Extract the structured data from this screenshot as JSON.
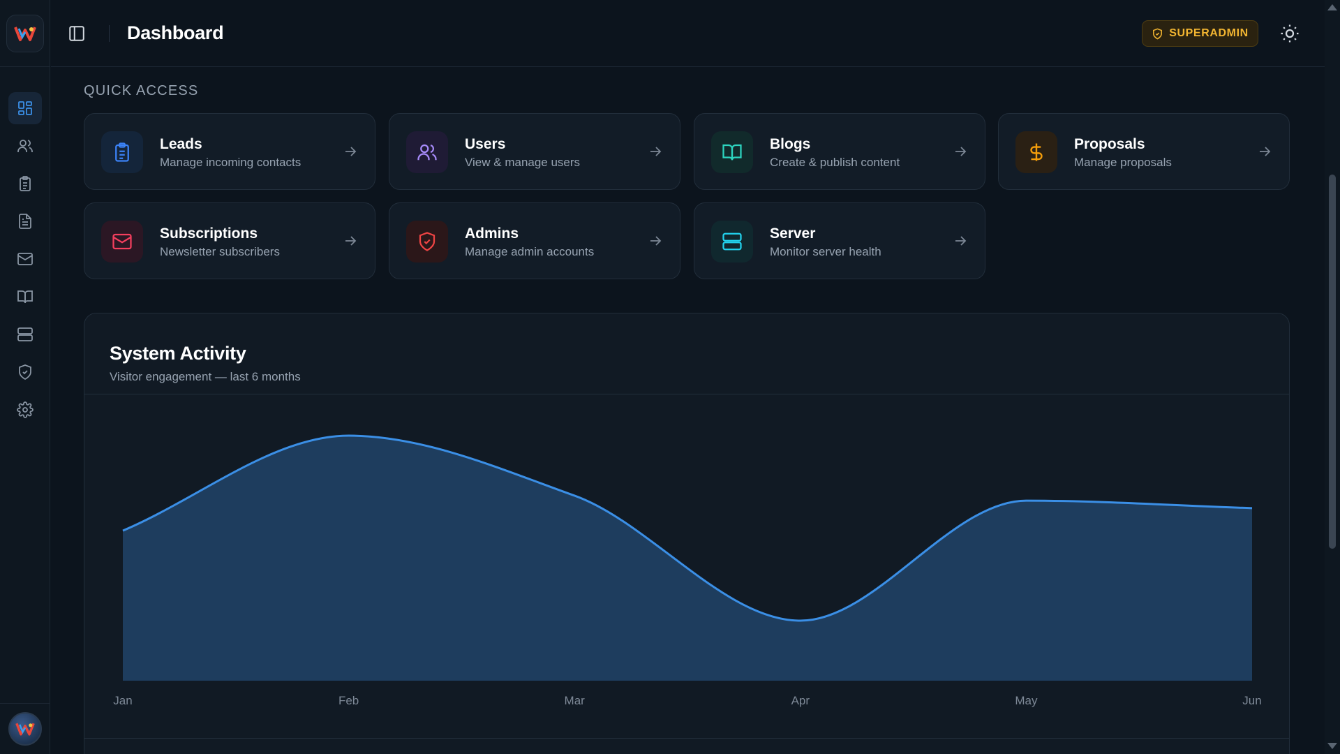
{
  "header": {
    "title": "Dashboard",
    "role_badge": "SUPERADMIN"
  },
  "sidebar": {
    "items": [
      {
        "icon": "dashboard-icon",
        "active": true
      },
      {
        "icon": "users-icon",
        "active": false
      },
      {
        "icon": "clipboard-icon",
        "active": false
      },
      {
        "icon": "document-icon",
        "active": false
      },
      {
        "icon": "mail-icon",
        "active": false
      },
      {
        "icon": "book-icon",
        "active": false
      },
      {
        "icon": "server-icon",
        "active": false
      },
      {
        "icon": "shield-icon",
        "active": false
      },
      {
        "icon": "gear-icon",
        "active": false
      }
    ]
  },
  "quick_access": {
    "label": "QUICK ACCESS",
    "cards": [
      {
        "title": "Leads",
        "subtitle": "Manage incoming contacts",
        "icon": "clipboard-icon",
        "color": "#3b82f6"
      },
      {
        "title": "Users",
        "subtitle": "View & manage users",
        "icon": "users-icon",
        "color": "#a78bfa"
      },
      {
        "title": "Blogs",
        "subtitle": "Create & publish content",
        "icon": "book-icon",
        "color": "#2dd4bf"
      },
      {
        "title": "Proposals",
        "subtitle": "Manage proposals",
        "icon": "dollar-icon",
        "color": "#f59e0b"
      },
      {
        "title": "Subscriptions",
        "subtitle": "Newsletter subscribers",
        "icon": "mail-icon",
        "color": "#f43f5e"
      },
      {
        "title": "Admins",
        "subtitle": "Manage admin accounts",
        "icon": "shield-check-icon",
        "color": "#ef4444"
      },
      {
        "title": "Server",
        "subtitle": "Monitor server health",
        "icon": "server-icon",
        "color": "#22d3ee"
      }
    ]
  },
  "activity": {
    "title": "System Activity",
    "subtitle": "Visitor engagement — last 6 months"
  },
  "chart_data": {
    "type": "area",
    "categories": [
      "Jan",
      "Feb",
      "Mar",
      "Apr",
      "May",
      "Jun"
    ],
    "values": [
      0.6,
      0.98,
      0.74,
      0.24,
      0.72,
      0.69
    ],
    "ylim": [
      0,
      1.1
    ],
    "grid": false,
    "line_color": "#3b8fe6",
    "fill_color": "#1e3d5e"
  }
}
